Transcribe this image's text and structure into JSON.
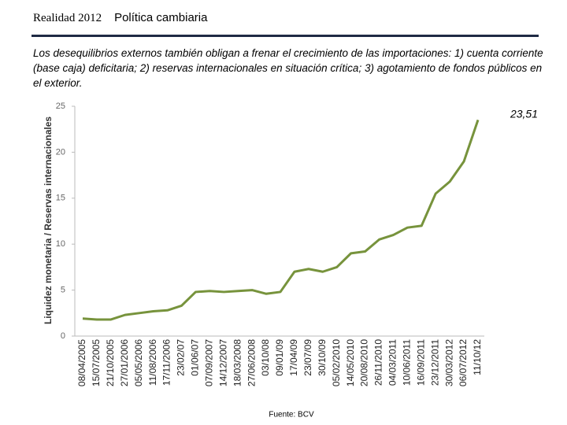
{
  "header": {
    "section": "Realidad 2012",
    "title": "Política cambiaria"
  },
  "subtitle": "Los desequilibrios externos también obligan a frenar el crecimiento de las importaciones: 1) cuenta corriente (base caja) deficitaria; 2) reservas internacionales en situación crítica;  3) agotamiento de fondos públicos en el exterior.",
  "source": "Fuente: BCV",
  "chart_data": {
    "type": "line",
    "ylabel": "Liquidez monetaria / Reservas internacionales",
    "annotation": "23,51",
    "categories": [
      "08/04/2005",
      "15/07/2005",
      "21/10/2005",
      "27/01/2006",
      "05/05/2006",
      "11/08/2006",
      "17/11/2006",
      "23/02/07",
      "01/06/07",
      "07/09/2007",
      "14/12/2007",
      "18/03/2008",
      "27/06/2008",
      "03/10/08",
      "09/01/09",
      "17/04/09",
      "23/07/09",
      "30/10/09",
      "05/02/2010",
      "14/05/2010",
      "20/08/2010",
      "26/11/2010",
      "04/03/2011",
      "10/06/2011",
      "16/09/2011",
      "23/12/2011",
      "30/03/2012",
      "06/07/2012",
      "11/10/12"
    ],
    "values": [
      1.9,
      1.8,
      1.8,
      2.3,
      2.5,
      2.7,
      2.8,
      3.3,
      4.8,
      4.9,
      4.8,
      4.9,
      5.0,
      4.6,
      4.8,
      7.0,
      7.3,
      7.0,
      7.5,
      9.0,
      9.2,
      10.5,
      11.0,
      11.8,
      12.0,
      15.5,
      16.8,
      19.0,
      23.51
    ],
    "color": "#77933c",
    "ylim": [
      0,
      25
    ],
    "yticks": [
      0,
      5,
      10,
      15,
      20,
      25
    ],
    "grid": false
  }
}
